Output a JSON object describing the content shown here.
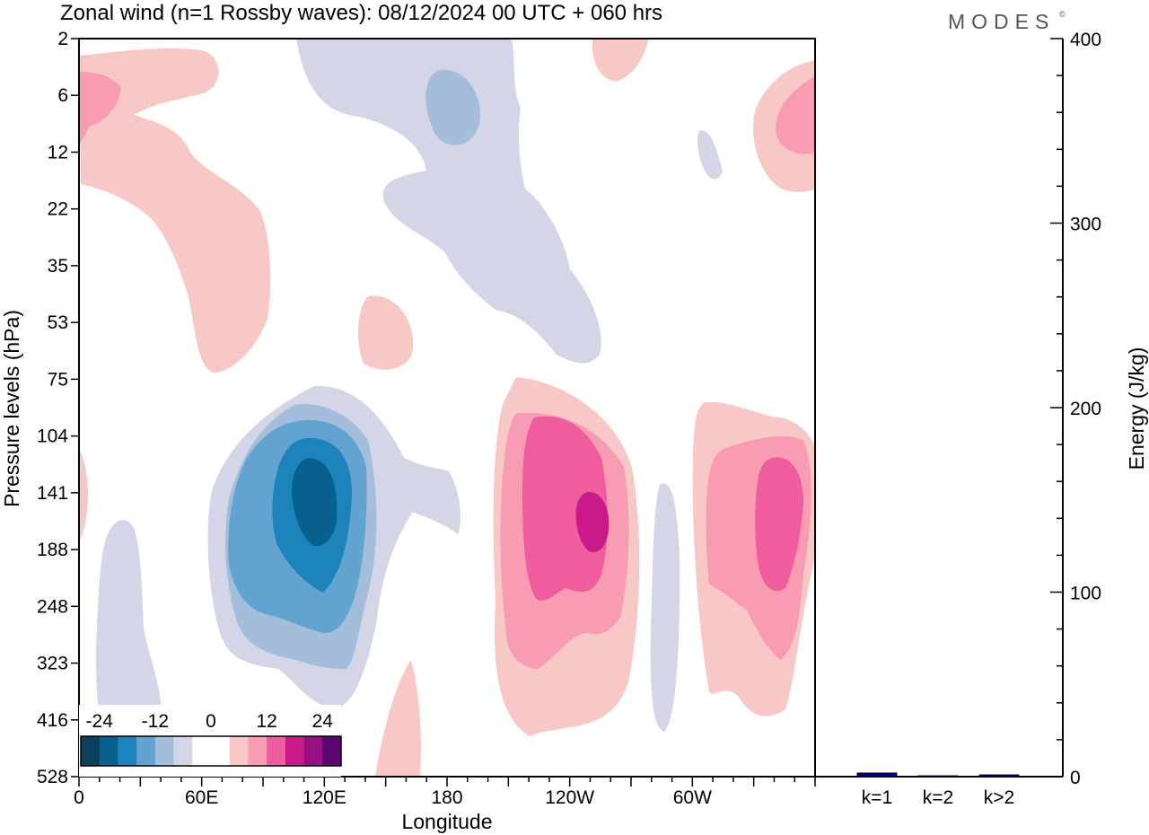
{
  "title": "Zonal wind (n=1 Rossby waves):  08/12/2024  00 UTC  + 060 hrs",
  "logo": "MODES",
  "logo_mark": "©",
  "chart_data": [
    {
      "type": "heatmap",
      "subtype": "filled-contour",
      "title": "Zonal wind (n=1 Rossby waves):  08/12/2024  00 UTC  + 060 hrs",
      "xlabel": "Longitude",
      "ylabel": "Pressure levels (hPa)",
      "x_ticks": [
        "0",
        "60E",
        "120E",
        "180",
        "120W",
        "60W"
      ],
      "x_range_deg_east": [
        0,
        360
      ],
      "y_ticks": [
        "2",
        "6",
        "12",
        "22",
        "35",
        "53",
        "75",
        "104",
        "141",
        "188",
        "248",
        "323",
        "416",
        "528"
      ],
      "colorbar": {
        "labels": [
          "-24",
          "-12",
          "0",
          "12",
          "24"
        ],
        "colors": [
          "#0b3f5c",
          "#08608f",
          "#1c83bd",
          "#62a3cf",
          "#a3bddb",
          "#d4d6e8",
          "#ffffff",
          "#ffffff",
          "#f8c8c6",
          "#f89bb3",
          "#ef5d9e",
          "#c9198a",
          "#961083",
          "#5a0570"
        ]
      },
      "features": [
        {
          "sign": "negative",
          "center_lon": 115,
          "center_level": "141",
          "peak_interval": "-24 to -20"
        },
        {
          "sign": "positive",
          "center_lon": 232,
          "center_level": "141",
          "peak_interval": "16 to 20"
        },
        {
          "sign": "positive",
          "center_lon": 335,
          "center_level": "141",
          "peak_interval": "12 to 16"
        }
      ]
    },
    {
      "type": "bar",
      "categories": [
        "k=1",
        "k=2",
        "k>2"
      ],
      "values": [
        2,
        0.5,
        1
      ],
      "ylabel": "Energy (J/kg)",
      "ylim": [
        0,
        400
      ],
      "y_ticks": [
        "0",
        "100",
        "200",
        "300",
        "400"
      ],
      "bar_color": "#00008b"
    }
  ]
}
